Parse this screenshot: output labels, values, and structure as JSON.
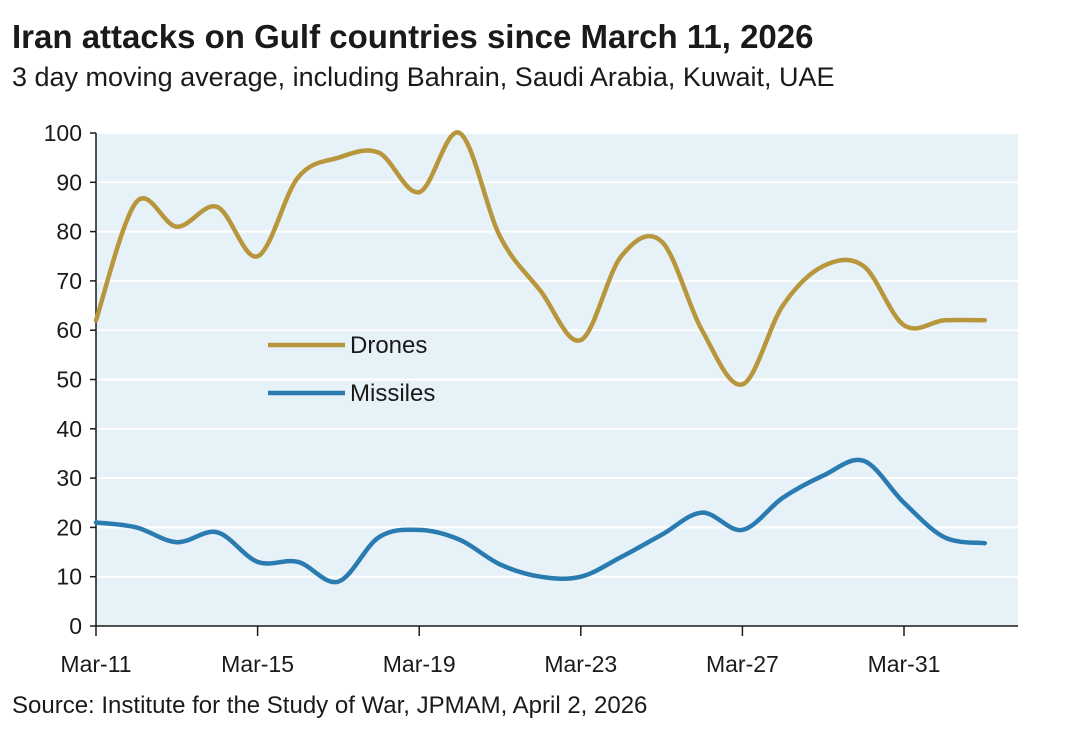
{
  "header": {
    "title": "Iran attacks on Gulf countries since March 11, 2026",
    "subtitle": "3 day moving average, including Bahrain, Saudi Arabia, Kuwait, UAE"
  },
  "footer": {
    "source": "Source: Institute for the Study of War, JPMAM, April 2, 2026"
  },
  "colors": {
    "plot_background": "#e6f1f8",
    "drones": "#b8963c",
    "missiles": "#2a7bb0",
    "gridline": "#ffffff"
  },
  "chart_data": {
    "type": "line",
    "title": "",
    "xlabel": "",
    "ylabel": "",
    "ylim": [
      0,
      100
    ],
    "yticks": [
      0,
      10,
      20,
      30,
      40,
      50,
      60,
      70,
      80,
      90,
      100
    ],
    "xticks": [
      "Mar-11",
      "Mar-15",
      "Mar-19",
      "Mar-23",
      "Mar-27",
      "Mar-31"
    ],
    "x": [
      "Mar-11",
      "Mar-12",
      "Mar-13",
      "Mar-14",
      "Mar-15",
      "Mar-16",
      "Mar-17",
      "Mar-18",
      "Mar-19",
      "Mar-20",
      "Mar-21",
      "Mar-22",
      "Mar-23",
      "Mar-24",
      "Mar-25",
      "Mar-26",
      "Mar-27",
      "Mar-28",
      "Mar-29",
      "Mar-30",
      "Mar-31",
      "Apr-01",
      "Apr-02"
    ],
    "grid": true,
    "legend": "center-left",
    "series": [
      {
        "name": "Drones",
        "values": [
          62,
          86,
          81,
          85,
          75,
          91,
          95,
          96,
          88,
          100,
          79,
          68,
          58,
          75,
          78,
          60,
          49,
          65,
          73,
          73,
          61,
          62,
          62
        ]
      },
      {
        "name": "Missiles",
        "values": [
          21,
          20,
          17,
          19,
          13,
          13,
          9,
          18,
          19.5,
          17.5,
          12.5,
          10,
          10,
          14,
          18.5,
          23,
          19.5,
          26,
          30.5,
          33.5,
          25,
          18,
          16.8
        ]
      }
    ]
  }
}
